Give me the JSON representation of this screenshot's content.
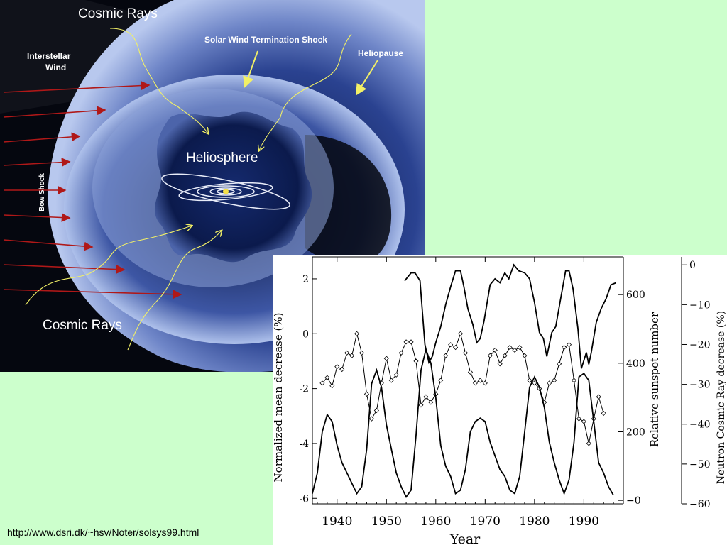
{
  "diagram": {
    "labels": {
      "cosmic_rays_top": "Cosmic Rays",
      "cosmic_rays_bottom": "Cosmic Rays",
      "interstellar_wind": "Interstellar\nWind",
      "termination_shock": "Solar Wind Termination Shock",
      "heliopause": "Heliopause",
      "heliosphere": "Heliosphere",
      "bow_shock": "Bow Shock"
    },
    "colors": {
      "background": "#05070f",
      "arrow_red": "#b01818",
      "pointer_yellow": "#f2f066",
      "shell_light": "#c8d6f2",
      "shell_mid": "#5a72b6",
      "shell_dark": "#1c2d6a"
    }
  },
  "caption": "http://www.dsri.dk/~hsv/Noter/solsys99.html",
  "chart_data": {
    "type": "line",
    "xlabel": "Year",
    "ylabel_left": "Normalized mean decrease (%)",
    "ylabel_mid": "Relative sunspot number",
    "ylabel_right": "Neutron Cosmic Ray decrease (%)",
    "xlim": [
      1935,
      1998
    ],
    "x_ticks": [
      1940,
      1950,
      1960,
      1970,
      1980,
      1990
    ],
    "ylim_left": [
      -6.2,
      2.8
    ],
    "y_ticks_left": [
      2,
      0,
      -2,
      -4,
      -6
    ],
    "ylim_sunspot": [
      -10,
      710
    ],
    "y_ticks_sunspot": [
      600,
      400,
      200,
      0
    ],
    "ylim_neutron": [
      2,
      -60
    ],
    "y_ticks_neutron": [
      0,
      -10,
      -20,
      -30,
      -40,
      -50,
      -60
    ],
    "series": [
      {
        "style": "line",
        "axis": "neutron",
        "x": [
          1953.7,
          1955.0,
          1955.8,
          1956.8,
          1957.8,
          1958.6,
          1959.3,
          1960.0,
          1961.0,
          1962.0,
          1963.0,
          1964.0,
          1965.0,
          1965.7,
          1966.5,
          1967.5,
          1968.3,
          1969.0,
          1969.8,
          1971.0,
          1972.0,
          1973.0,
          1974.0,
          1974.8,
          1975.8,
          1976.8,
          1978.0,
          1979.0,
          1980.0,
          1981.0,
          1981.8,
          1982.5,
          1983.5,
          1984.3,
          1985.3,
          1986.3,
          1987.0,
          1987.8,
          1988.8,
          1989.5,
          1990.5,
          1991.0,
          1991.5,
          1992.5,
          1993.5,
          1994.5,
          1995.5,
          1996.5
        ],
        "y": [
          -4.0,
          -2.0,
          -2.0,
          -4.0,
          -20.0,
          -24.5,
          -23.0,
          -19.5,
          -15.5,
          -10.0,
          -5.5,
          -1.5,
          -1.5,
          -5.5,
          -11.0,
          -15.0,
          -19.5,
          -18.5,
          -14.0,
          -5.0,
          -3.5,
          -4.5,
          -2.0,
          -3.5,
          0.0,
          -1.5,
          -2.0,
          -3.5,
          -9.5,
          -17.0,
          -18.5,
          -23.0,
          -17.0,
          -15.5,
          -8.5,
          -1.5,
          -1.5,
          -6.0,
          -16.0,
          -26.0,
          -22.0,
          -25.0,
          -22.0,
          -14.5,
          -11.0,
          -8.5,
          -5.0,
          -4.5
        ]
      },
      {
        "style": "diamond-markers",
        "axis": "left",
        "x": [
          1937.0,
          1938.0,
          1939.0,
          1940.0,
          1941.0,
          1942.0,
          1943.0,
          1944.0,
          1945.0,
          1946.0,
          1947.0,
          1948.0,
          1949.0,
          1950.0,
          1951.0,
          1952.0,
          1953.0,
          1954.0,
          1955.0,
          1956.0,
          1957.0,
          1958.0,
          1959.0,
          1960.0,
          1961.0,
          1962.0,
          1963.0,
          1964.0,
          1965.0,
          1966.0,
          1967.0,
          1968.0,
          1969.0,
          1970.0,
          1971.0,
          1972.0,
          1973.0,
          1974.0,
          1975.0,
          1976.0,
          1977.0,
          1978.0,
          1979.0,
          1980.0,
          1981.0,
          1982.0,
          1983.0,
          1984.0,
          1985.0,
          1986.0,
          1987.0,
          1988.0,
          1989.0,
          1990.0,
          1991.0,
          1992.0,
          1993.0,
          1994.0
        ],
        "y": [
          -1.8,
          -1.6,
          -1.9,
          -1.2,
          -1.3,
          -0.7,
          -0.8,
          0.0,
          -0.7,
          -2.2,
          -3.1,
          -2.8,
          -1.8,
          -0.9,
          -1.7,
          -1.5,
          -0.7,
          -0.3,
          -0.3,
          -1.0,
          -2.6,
          -2.3,
          -2.5,
          -2.2,
          -1.7,
          -0.8,
          -0.4,
          -0.5,
          0.0,
          -0.7,
          -1.4,
          -1.8,
          -1.7,
          -1.8,
          -0.8,
          -0.6,
          -1.1,
          -0.8,
          -0.5,
          -0.6,
          -0.5,
          -0.8,
          -1.7,
          -1.8,
          -2.0,
          -2.5,
          -1.8,
          -1.7,
          -1.1,
          -0.5,
          -0.4,
          -1.7,
          -3.1,
          -3.2,
          -4.0,
          -3.1,
          -2.3,
          -2.9
        ]
      },
      {
        "style": "line",
        "axis": "sunspot",
        "x": [
          1935.0,
          1936.0,
          1937.0,
          1938.0,
          1939.0,
          1940.0,
          1941.0,
          1942.0,
          1943.0,
          1944.0,
          1945.0,
          1946.0,
          1947.0,
          1948.0,
          1949.0,
          1950.0,
          1951.0,
          1952.0,
          1953.0,
          1954.0,
          1955.0,
          1956.0,
          1957.0,
          1958.0,
          1959.0,
          1960.0,
          1961.0,
          1962.0,
          1963.0,
          1964.0,
          1965.0,
          1966.0,
          1967.0,
          1968.0,
          1969.0,
          1970.0,
          1971.0,
          1972.0,
          1973.0,
          1974.0,
          1975.0,
          1976.0,
          1977.0,
          1978.0,
          1979.0,
          1980.0,
          1981.0,
          1982.0,
          1983.0,
          1984.0,
          1985.0,
          1986.0,
          1987.0,
          1988.0,
          1989.0,
          1990.0,
          1991.0,
          1992.0,
          1993.0,
          1994.0,
          1995.0,
          1996.0
        ],
        "y": [
          20,
          80,
          200,
          250,
          230,
          160,
          110,
          80,
          50,
          20,
          40,
          150,
          340,
          380,
          330,
          220,
          150,
          80,
          40,
          10,
          30,
          190,
          380,
          440,
          400,
          300,
          160,
          100,
          70,
          20,
          30,
          90,
          200,
          230,
          240,
          230,
          170,
          130,
          90,
          70,
          30,
          20,
          70,
          200,
          330,
          360,
          330,
          270,
          170,
          110,
          60,
          20,
          60,
          170,
          360,
          370,
          350,
          230,
          110,
          80,
          40,
          15
        ]
      }
    ]
  }
}
